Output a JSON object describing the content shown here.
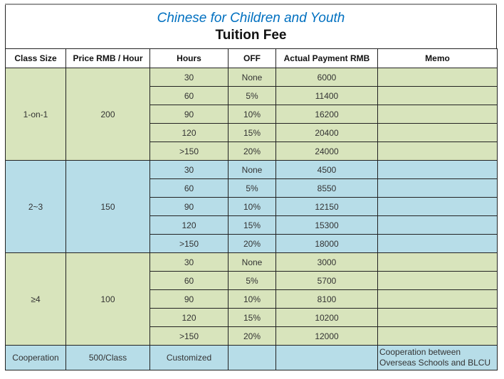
{
  "title": "Chinese for Children and Youth",
  "subtitle": "Tuition Fee",
  "headers": [
    "Class Size",
    "Price RMB / Hour",
    "Hours",
    "OFF",
    "Actual Payment RMB",
    "Memo"
  ],
  "colors": {
    "group_a": "#d8e4bc",
    "group_b": "#b7dde8",
    "title": "#0070c0"
  },
  "groups": [
    {
      "class_size": "1-on-1",
      "price": "200",
      "color": "g",
      "rows": [
        {
          "hours": "30",
          "off": "None",
          "payment": "6000",
          "memo": ""
        },
        {
          "hours": "60",
          "off": "5%",
          "payment": "11400",
          "memo": ""
        },
        {
          "hours": "90",
          "off": "10%",
          "payment": "16200",
          "memo": ""
        },
        {
          "hours": "120",
          "off": "15%",
          "payment": "20400",
          "memo": ""
        },
        {
          "hours": ">150",
          "off": "20%",
          "payment": "24000",
          "memo": ""
        }
      ]
    },
    {
      "class_size": "2~3",
      "price": "150",
      "color": "b",
      "rows": [
        {
          "hours": "30",
          "off": "None",
          "payment": "4500",
          "memo": ""
        },
        {
          "hours": "60",
          "off": "5%",
          "payment": "8550",
          "memo": ""
        },
        {
          "hours": "90",
          "off": "10%",
          "payment": "12150",
          "memo": ""
        },
        {
          "hours": "120",
          "off": "15%",
          "payment": "15300",
          "memo": ""
        },
        {
          "hours": ">150",
          "off": "20%",
          "payment": "18000",
          "memo": ""
        }
      ]
    },
    {
      "class_size": "≥4",
      "price": "100",
      "color": "g",
      "rows": [
        {
          "hours": "30",
          "off": "None",
          "payment": "3000",
          "memo": ""
        },
        {
          "hours": "60",
          "off": "5%",
          "payment": "5700",
          "memo": ""
        },
        {
          "hours": "90",
          "off": "10%",
          "payment": "8100",
          "memo": ""
        },
        {
          "hours": "120",
          "off": "15%",
          "payment": "10200",
          "memo": ""
        },
        {
          "hours": ">150",
          "off": "20%",
          "payment": "12000",
          "memo": ""
        }
      ]
    }
  ],
  "cooperation": {
    "class_size": "Cooperation",
    "price": "500/Class",
    "hours": "Customized",
    "off": "",
    "payment": "",
    "memo": "Cooperation between Overseas Schools and BLCU"
  }
}
